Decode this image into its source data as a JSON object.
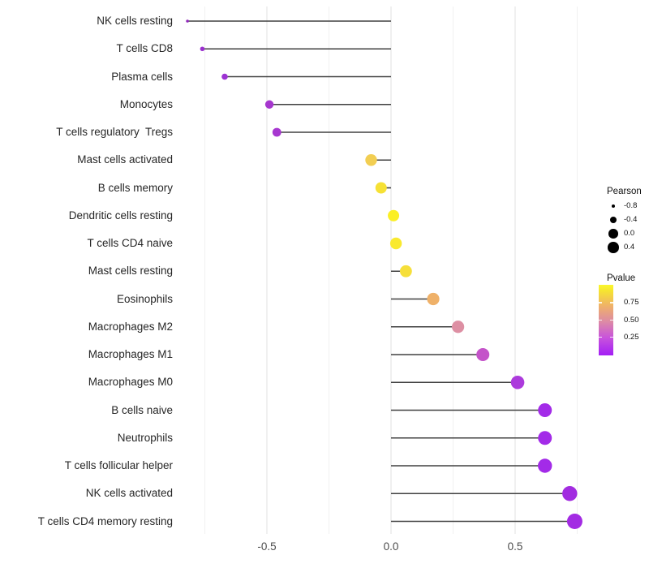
{
  "chart_data": {
    "type": "lollipop",
    "title": "",
    "xlabel": "",
    "ylabel": "",
    "orientation": "horizontal",
    "x_range": [
      -0.85,
      0.8
    ],
    "grid": "on",
    "x_ticks": [
      {
        "value": -0.5,
        "label": "-0.5"
      },
      {
        "value": 0.0,
        "label": "0.0"
      },
      {
        "value": 0.5,
        "label": "0.5"
      }
    ],
    "x_major_gridlines": [
      -0.5,
      0.0,
      0.5
    ],
    "x_minor_gridlines": [
      -0.75,
      -0.25,
      0.25,
      0.75
    ],
    "points": [
      {
        "label": "NK cells resting",
        "pearson": -0.82,
        "pvalue_approx": 0.05,
        "color": "#9129BB",
        "radius_px": 1.8
      },
      {
        "label": "T cells CD8",
        "pearson": -0.76,
        "pvalue_approx": 0.08,
        "color": "#9A2FCE",
        "radius_px": 2.8
      },
      {
        "label": "Plasma cells",
        "pearson": -0.67,
        "pvalue_approx": 0.1,
        "color": "#9D33D3",
        "radius_px": 3.8
      },
      {
        "label": "Monocytes",
        "pearson": -0.49,
        "pvalue_approx": 0.15,
        "color": "#A637CE",
        "radius_px": 5.2
      },
      {
        "label": "T cells regulatory  Tregs",
        "pearson": -0.46,
        "pvalue_approx": 0.15,
        "color": "#A737D0",
        "radius_px": 5.4
      },
      {
        "label": "Mast cells activated",
        "pearson": -0.08,
        "pvalue_approx": 0.78,
        "color": "#F2CE52",
        "radius_px": 7.2
      },
      {
        "label": "B cells memory",
        "pearson": -0.04,
        "pvalue_approx": 0.85,
        "color": "#F6E135",
        "radius_px": 7.0
      },
      {
        "label": "Dendritic cells resting",
        "pearson": 0.01,
        "pvalue_approx": 0.93,
        "color": "#FBEF25",
        "radius_px": 7.0
      },
      {
        "label": "T cells CD4 naive",
        "pearson": 0.02,
        "pvalue_approx": 0.88,
        "color": "#F9E92E",
        "radius_px": 7.2
      },
      {
        "label": "Mast cells resting",
        "pearson": 0.06,
        "pvalue_approx": 0.82,
        "color": "#F6DF3A",
        "radius_px": 7.4
      },
      {
        "label": "Eosinophils",
        "pearson": 0.17,
        "pvalue_approx": 0.7,
        "color": "#EFB169",
        "radius_px": 7.6
      },
      {
        "label": "Macrophages M2",
        "pearson": 0.27,
        "pvalue_approx": 0.45,
        "color": "#DD8FA3",
        "radius_px": 7.6
      },
      {
        "label": "Macrophages M1",
        "pearson": 0.37,
        "pvalue_approx": 0.28,
        "color": "#C453C9",
        "radius_px": 8.0
      },
      {
        "label": "Macrophages M0",
        "pearson": 0.51,
        "pvalue_approx": 0.12,
        "color": "#AC3BDC",
        "radius_px": 8.3
      },
      {
        "label": "B cells naive",
        "pearson": 0.62,
        "pvalue_approx": 0.06,
        "color": "#A32BE8",
        "radius_px": 8.5
      },
      {
        "label": "Neutrophils",
        "pearson": 0.62,
        "pvalue_approx": 0.06,
        "color": "#A32BE8",
        "radius_px": 8.5
      },
      {
        "label": "T cells follicular helper",
        "pearson": 0.62,
        "pvalue_approx": 0.06,
        "color": "#A32BE8",
        "radius_px": 8.7
      },
      {
        "label": "NK cells activated",
        "pearson": 0.72,
        "pvalue_approx": 0.03,
        "color": "#A22CE0",
        "radius_px": 9.2
      },
      {
        "label": "T cells CD4 memory resting",
        "pearson": 0.74,
        "pvalue_approx": 0.03,
        "color": "#A32BE3",
        "radius_px": 9.5
      }
    ],
    "size_legend": {
      "title": "Pearson",
      "items": [
        {
          "label": "-0.8",
          "radius_px": 2.2
        },
        {
          "label": "-0.4",
          "radius_px": 4.4
        },
        {
          "label": "0.0",
          "radius_px": 5.8
        },
        {
          "label": "0.4",
          "radius_px": 6.8
        }
      ]
    },
    "color_legend": {
      "title": "Pvalue",
      "tick_labels": [
        "0.75",
        "0.50",
        "0.25"
      ],
      "gradient_top_to_bottom": [
        "#FAF72E",
        "#F6E52F",
        "#EFB169",
        "#DD8BA5",
        "#C853DC",
        "#A31EF5"
      ]
    },
    "colors": {
      "stem": "#404040",
      "major_grid": "#E4E4E4",
      "minor_grid": "#F1F1F1",
      "axis_text": "#4D4D4D",
      "label_text": "#262626",
      "legend_dot": "#000000"
    }
  }
}
